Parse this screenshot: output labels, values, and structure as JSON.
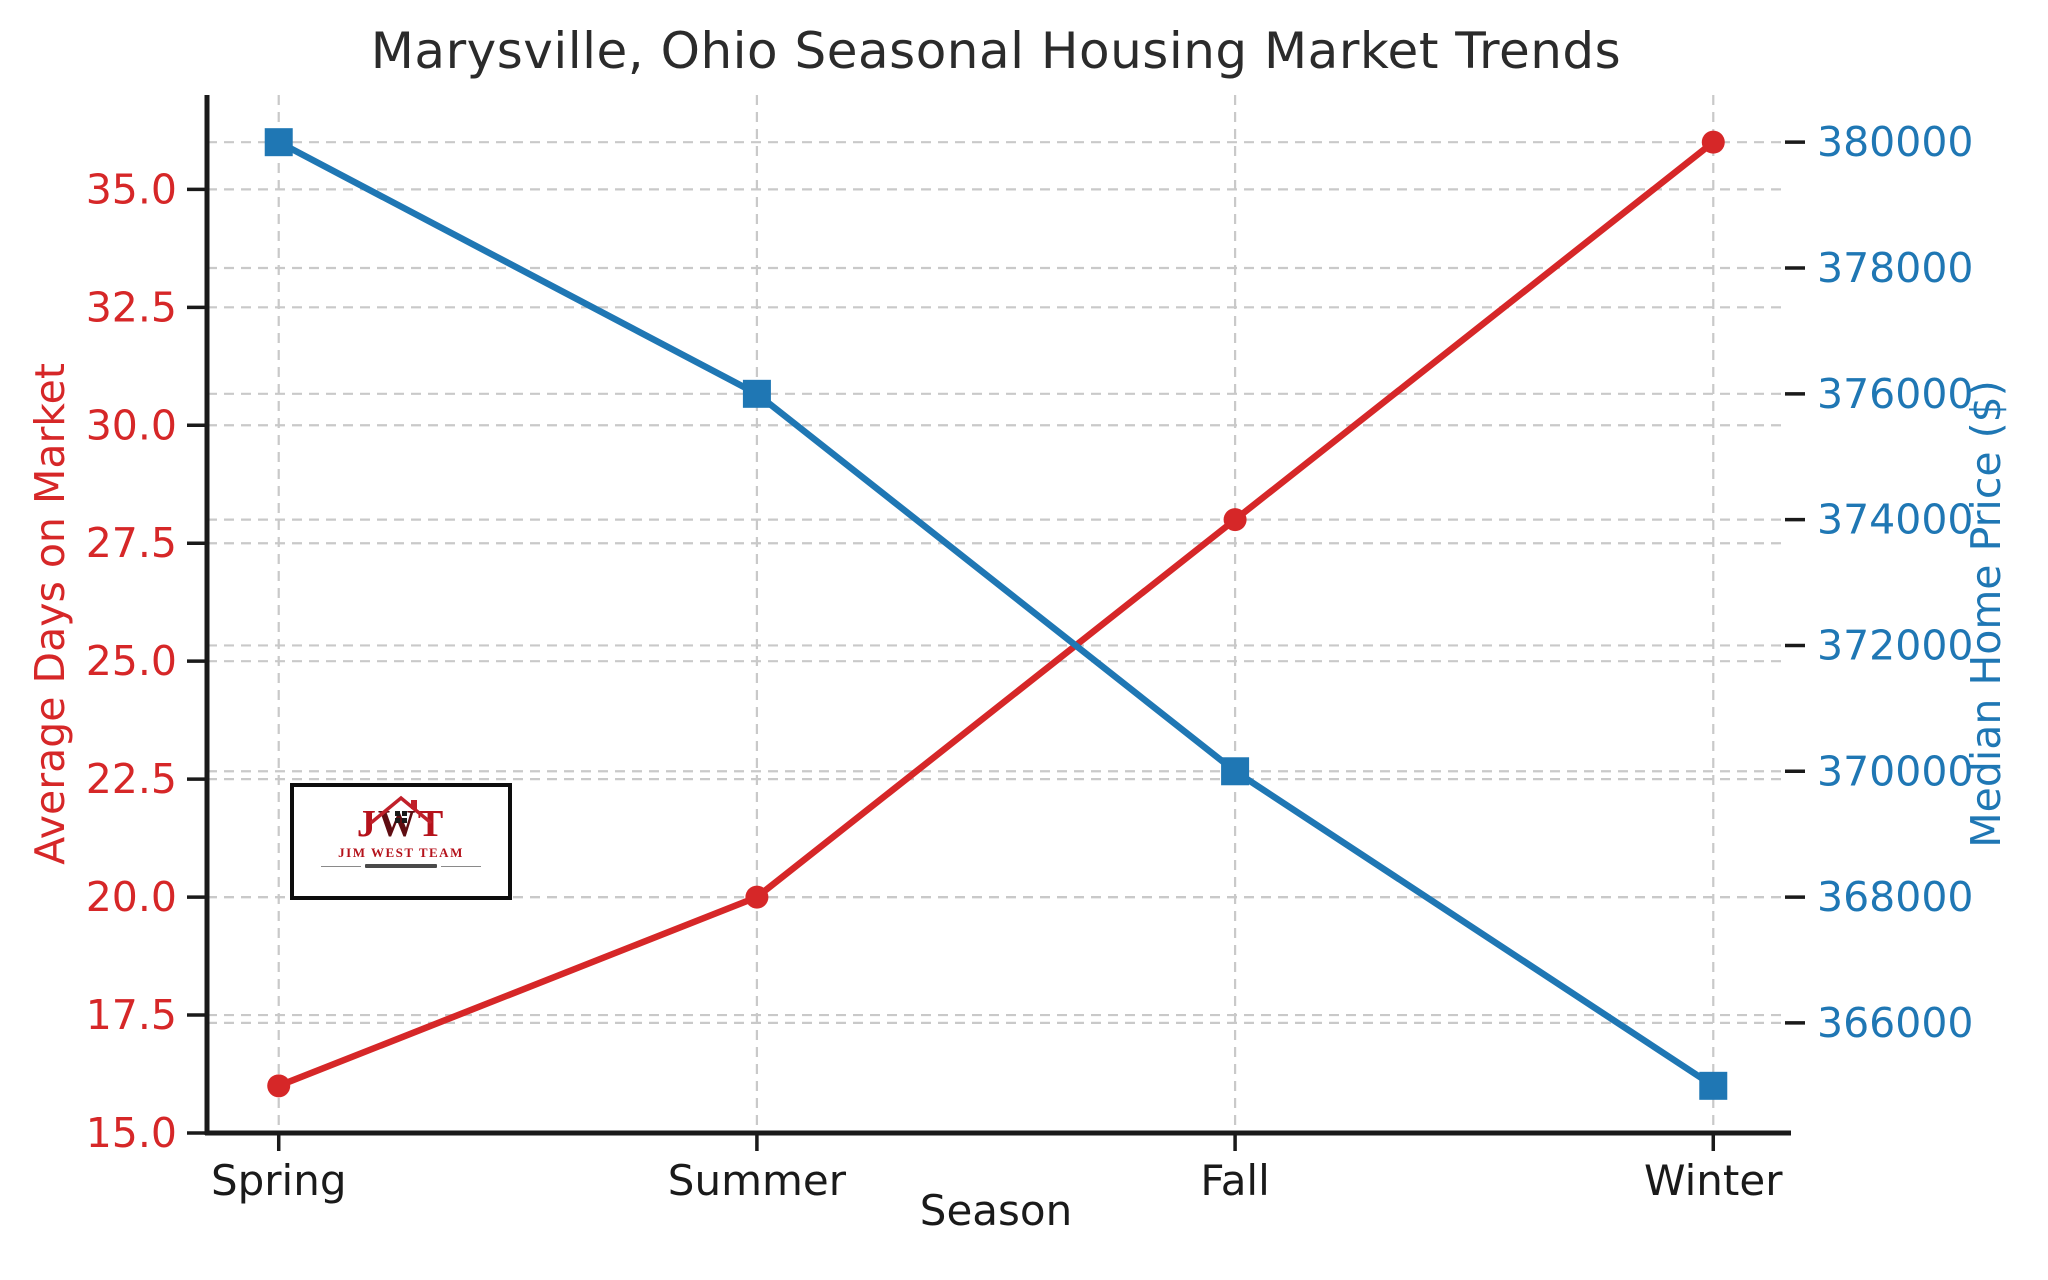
{
  "title": "Marysville, Ohio Seasonal Housing Market Trends",
  "chart_data": {
    "type": "line",
    "title": "Marysville, Ohio Seasonal Housing Market Trends",
    "xlabel": "Season",
    "categories": [
      "Spring",
      "Summer",
      "Fall",
      "Winter"
    ],
    "series": [
      {
        "name": "Average Days on Market",
        "axis": "left",
        "color": "#d62728",
        "marker": "circle",
        "values": [
          16,
          20,
          28,
          36
        ]
      },
      {
        "name": "Median Home Price ($)",
        "axis": "right",
        "color": "#1f77b4",
        "marker": "square",
        "values": [
          380000,
          376000,
          370000,
          365000
        ]
      }
    ],
    "left_axis": {
      "label": "Average Days on Market",
      "color": "#d62728",
      "lim": [
        15,
        37
      ],
      "ticks": [
        15,
        17.5,
        20,
        22.5,
        25,
        27.5,
        30,
        32.5,
        35
      ],
      "tick_labels": [
        "15.0",
        "17.5",
        "20.0",
        "22.5",
        "25.0",
        "27.5",
        "30.0",
        "32.5",
        "35.0"
      ]
    },
    "right_axis": {
      "label": "Median Home Price ($)",
      "color": "#1f77b4",
      "lim": [
        364250,
        380750
      ],
      "ticks": [
        366000,
        368000,
        370000,
        372000,
        374000,
        376000,
        378000,
        380000
      ],
      "tick_labels": [
        "366000",
        "368000",
        "370000",
        "372000",
        "374000",
        "376000",
        "378000",
        "380000"
      ]
    },
    "x_lim": [
      -0.15,
      3.15
    ],
    "grid": true,
    "grid_style": "dashed",
    "legend": "none"
  },
  "watermark": {
    "letters": [
      "J",
      "W",
      "T"
    ],
    "team_name": "JIM WEST TEAM"
  },
  "styles": {
    "background": "#ffffff",
    "grid_color": "#c9c9c9",
    "spine_color": "#1a1a1a",
    "title_color": "#2b2b2b",
    "xtick_color": "#1a1a1a",
    "red": "#d62728",
    "blue": "#1f77b4"
  }
}
